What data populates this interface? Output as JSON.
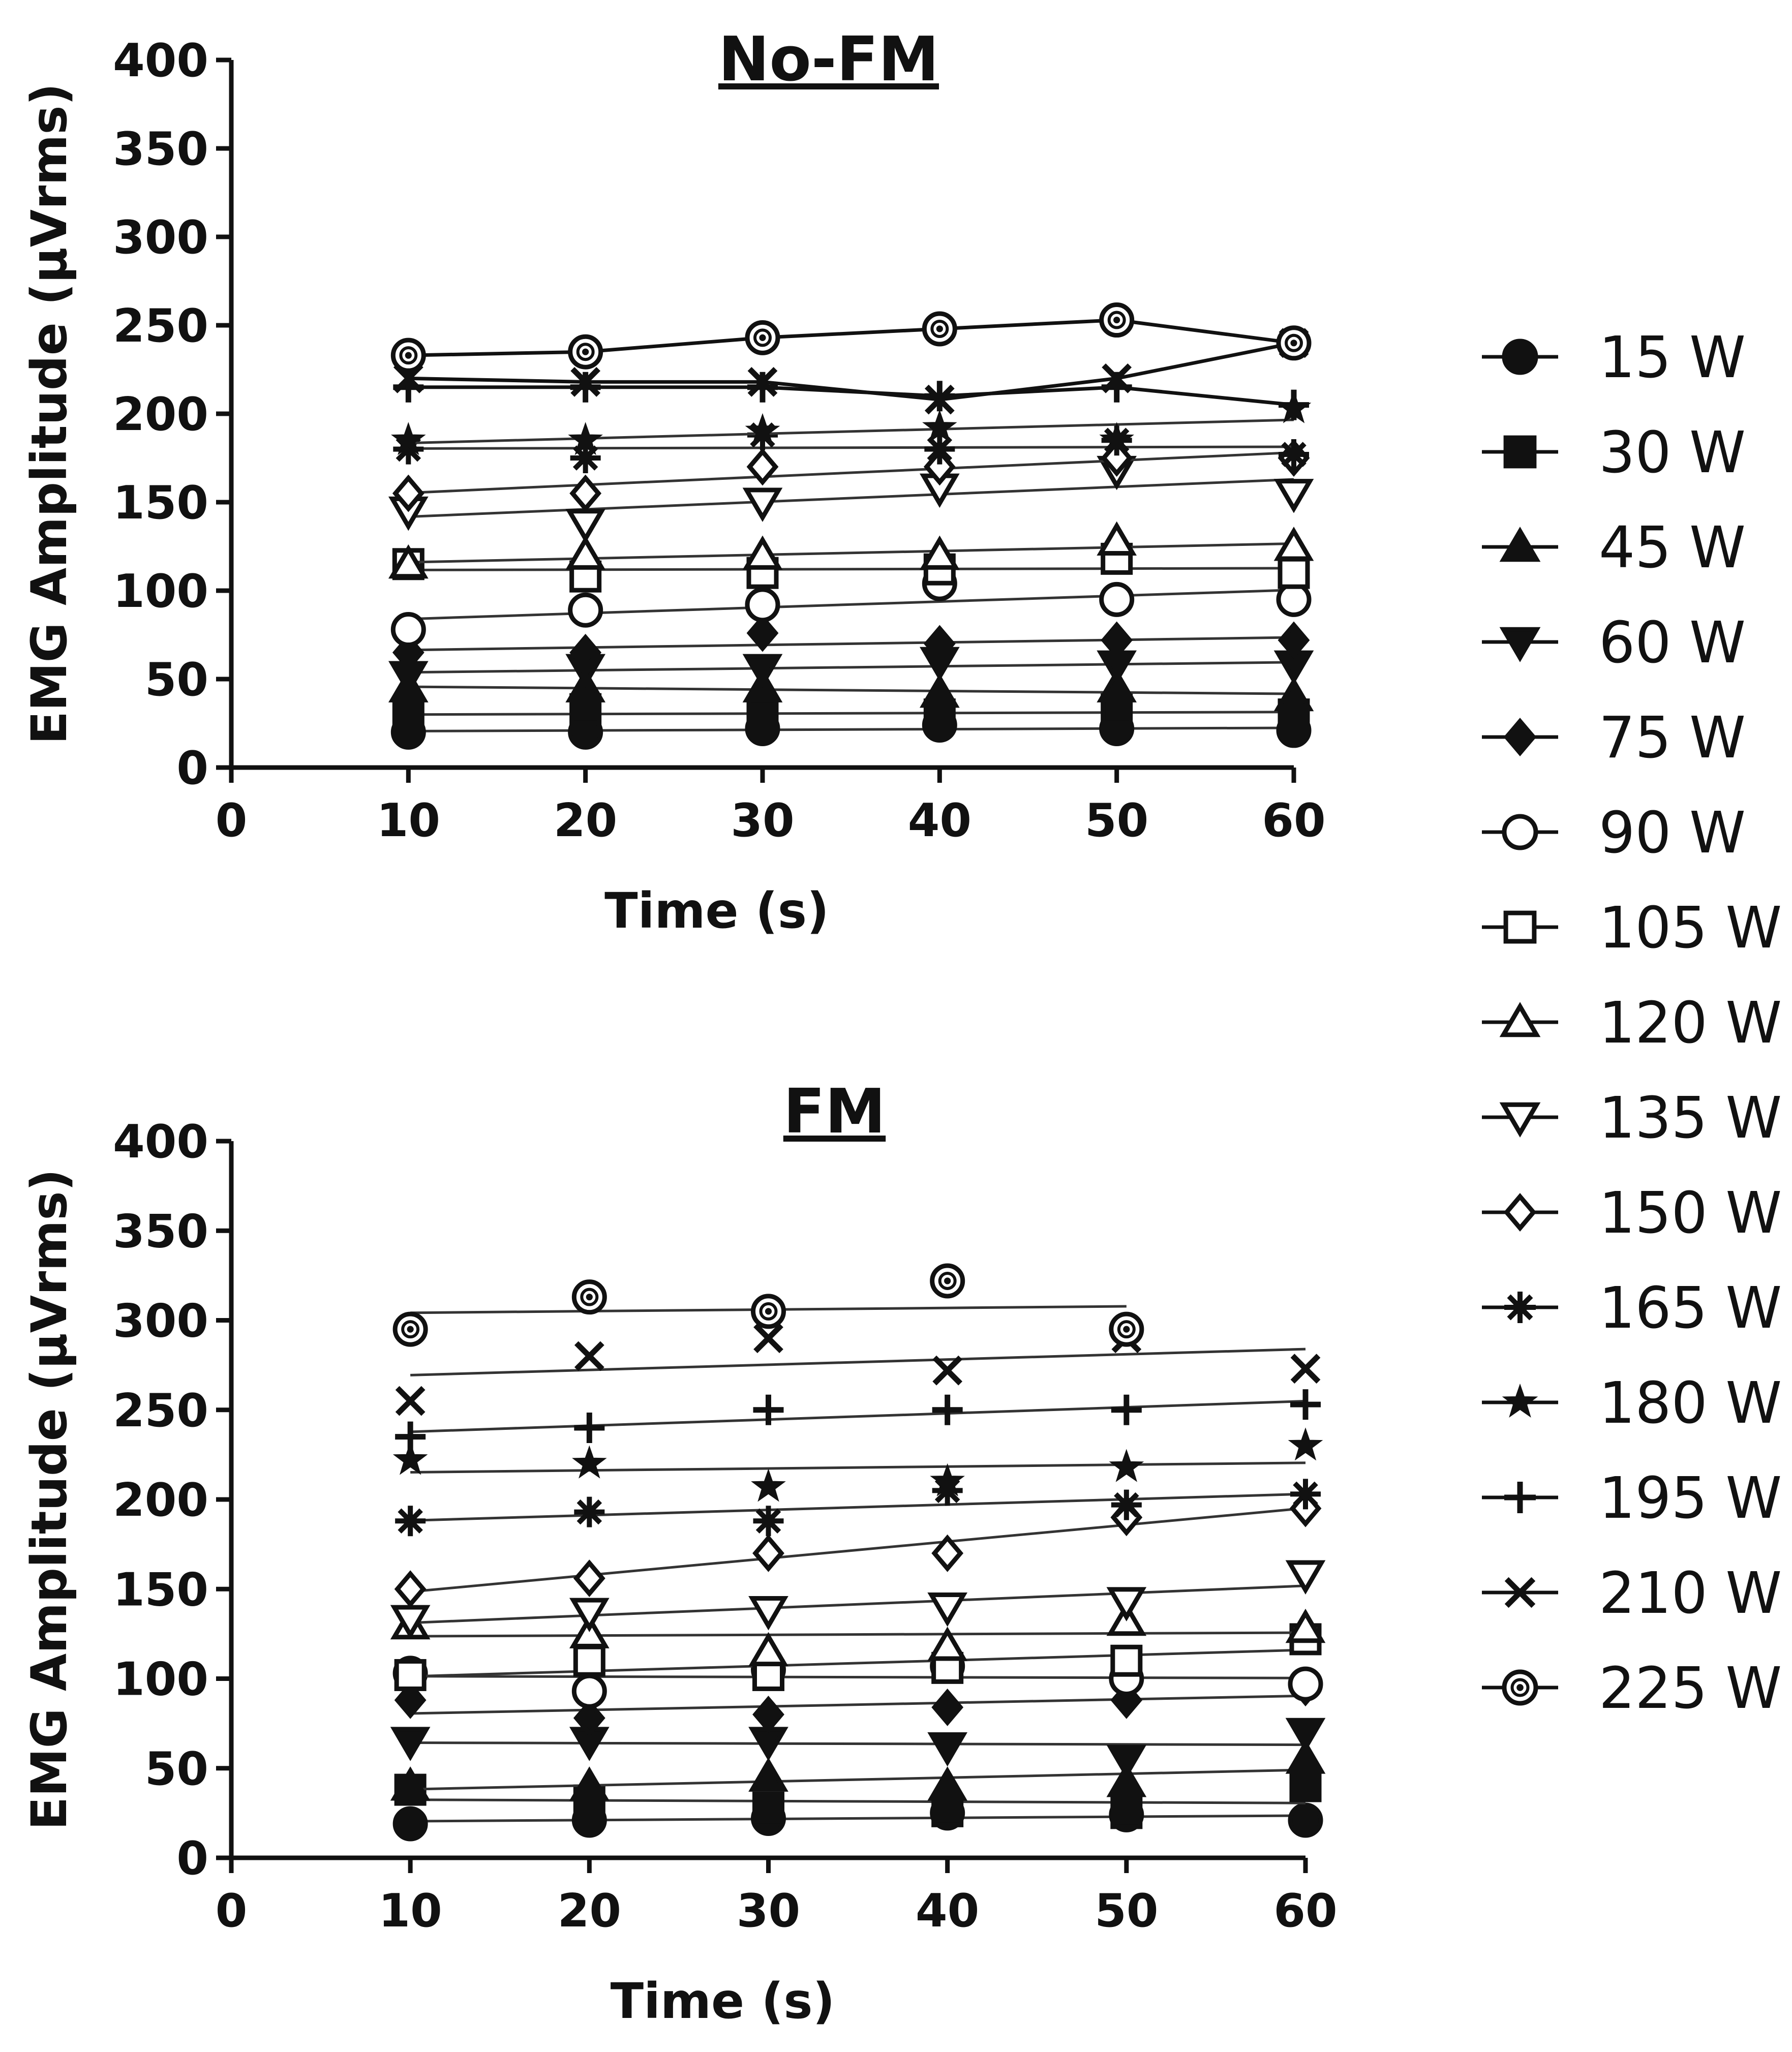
{
  "chart_data": [
    {
      "type": "scatter",
      "title": "No-FM",
      "xlabel": "Time (s)",
      "ylabel": "EMG Amplitude  (μVrms)",
      "xlim": [
        0,
        60
      ],
      "ylim": [
        0,
        400
      ],
      "xticks": [
        0,
        10,
        20,
        30,
        40,
        50,
        60
      ],
      "yticks": [
        0,
        50,
        100,
        150,
        200,
        250,
        300,
        350,
        400
      ],
      "x": [
        10,
        20,
        30,
        40,
        50,
        60
      ],
      "series": [
        {
          "name": "15 W",
          "marker": "circle-filled",
          "values": [
            20,
            20,
            22,
            24,
            22,
            21
          ],
          "connect": false
        },
        {
          "name": "30 W",
          "marker": "square-filled",
          "values": [
            28,
            33,
            30,
            30,
            33,
            30
          ],
          "connect": false
        },
        {
          "name": "45 W",
          "marker": "triangle-up-filled",
          "values": [
            45,
            45,
            45,
            42,
            45,
            40
          ],
          "connect": false
        },
        {
          "name": "60 W",
          "marker": "triangle-down-filled",
          "values": [
            52,
            56,
            56,
            60,
            58,
            58
          ],
          "connect": false
        },
        {
          "name": "75 W",
          "marker": "diamond-filled",
          "values": [
            65,
            65,
            76,
            70,
            72,
            72
          ],
          "connect": false
        },
        {
          "name": "90 W",
          "marker": "circle-open",
          "values": [
            78,
            89,
            92,
            104,
            95,
            95
          ],
          "connect": false
        },
        {
          "name": "105 W",
          "marker": "square-open",
          "values": [
            115,
            108,
            110,
            112,
            118,
            110
          ],
          "connect": false
        },
        {
          "name": "120 W",
          "marker": "triangle-up-open",
          "values": [
            115,
            120,
            120,
            120,
            128,
            125
          ],
          "connect": false
        },
        {
          "name": "135 W",
          "marker": "triangle-down-open",
          "values": [
            145,
            138,
            150,
            158,
            168,
            155
          ],
          "connect": false
        },
        {
          "name": "150 W",
          "marker": "diamond-open",
          "values": [
            155,
            155,
            170,
            170,
            175,
            175
          ],
          "connect": false
        },
        {
          "name": "165 W",
          "marker": "asterisk",
          "values": [
            180,
            175,
            188,
            180,
            185,
            177
          ],
          "connect": false
        },
        {
          "name": "180 W",
          "marker": "star",
          "values": [
            185,
            185,
            190,
            192,
            185,
            203
          ],
          "connect": false
        },
        {
          "name": "195 W",
          "marker": "plus",
          "values": [
            215,
            215,
            215,
            210,
            215,
            205
          ],
          "connect": true
        },
        {
          "name": "210 W",
          "marker": "x",
          "values": [
            220,
            218,
            218,
            208,
            220,
            240
          ],
          "connect": true
        },
        {
          "name": "225 W",
          "marker": "circle-dot",
          "values": [
            233,
            235,
            243,
            248,
            253,
            240
          ],
          "connect": true
        }
      ]
    },
    {
      "type": "scatter",
      "title": "FM",
      "xlabel": "Time (s)",
      "ylabel": "EMG Amplitude  (μVrms)",
      "xlim": [
        0,
        60
      ],
      "ylim": [
        0,
        400
      ],
      "xticks": [
        0,
        10,
        20,
        30,
        40,
        50,
        60
      ],
      "yticks": [
        0,
        50,
        100,
        150,
        200,
        250,
        300,
        350,
        400
      ],
      "x": [
        10,
        20,
        30,
        40,
        50,
        60
      ],
      "series": [
        {
          "name": "15 W",
          "marker": "circle-filled",
          "values": [
            19,
            21,
            22,
            25,
            24,
            21
          ],
          "connect": false
        },
        {
          "name": "30 W",
          "marker": "square-filled",
          "values": [
            38,
            32,
            28,
            26,
            25,
            40
          ],
          "connect": false
        },
        {
          "name": "45 W",
          "marker": "triangle-up-filled",
          "values": [
            40,
            40,
            45,
            40,
            42,
            55
          ],
          "connect": false
        },
        {
          "name": "60 W",
          "marker": "triangle-down-filled",
          "values": [
            65,
            65,
            65,
            62,
            55,
            70
          ],
          "connect": false
        },
        {
          "name": "75 W",
          "marker": "diamond-filled",
          "values": [
            88,
            78,
            80,
            84,
            88,
            95
          ],
          "connect": false
        },
        {
          "name": "90 W",
          "marker": "circle-open",
          "values": [
            103,
            93,
            105,
            107,
            100,
            97
          ],
          "connect": false
        },
        {
          "name": "105 W",
          "marker": "square-open",
          "values": [
            102,
            110,
            102,
            106,
            110,
            122
          ],
          "connect": false
        },
        {
          "name": "120 W",
          "marker": "triangle-up-open",
          "values": [
            130,
            125,
            115,
            118,
            132,
            128
          ],
          "connect": false
        },
        {
          "name": "135 W",
          "marker": "triangle-down-open",
          "values": [
            133,
            137,
            138,
            140,
            143,
            158
          ],
          "connect": false
        },
        {
          "name": "150 W",
          "marker": "diamond-open",
          "values": [
            150,
            156,
            170,
            170,
            190,
            195
          ],
          "connect": false
        },
        {
          "name": "165 W",
          "marker": "asterisk",
          "values": [
            188,
            193,
            188,
            205,
            197,
            203
          ],
          "connect": false
        },
        {
          "name": "180 W",
          "marker": "star",
          "values": [
            222,
            220,
            207,
            210,
            218,
            230
          ],
          "connect": false
        },
        {
          "name": "195 W",
          "marker": "plus",
          "values": [
            235,
            240,
            250,
            250,
            250,
            253
          ],
          "connect": false
        },
        {
          "name": "210 W",
          "marker": "x",
          "values": [
            255,
            280,
            290,
            272,
            290,
            273
          ],
          "connect": false
        },
        {
          "name": "225 W",
          "marker": "circle-dot",
          "values": [
            295,
            313,
            305,
            322,
            295,
            null
          ],
          "connect": false
        }
      ]
    }
  ],
  "legend": {
    "placement": "right",
    "items": [
      {
        "label": "15 W",
        "marker": "circle-filled"
      },
      {
        "label": "30 W",
        "marker": "square-filled"
      },
      {
        "label": "45 W",
        "marker": "triangle-up-filled"
      },
      {
        "label": "60 W",
        "marker": "triangle-down-filled"
      },
      {
        "label": "75 W",
        "marker": "diamond-filled"
      },
      {
        "label": "90 W",
        "marker": "circle-open"
      },
      {
        "label": "105 W",
        "marker": "square-open"
      },
      {
        "label": "120 W",
        "marker": "triangle-up-open"
      },
      {
        "label": "135 W",
        "marker": "triangle-down-open"
      },
      {
        "label": "150 W",
        "marker": "diamond-open"
      },
      {
        "label": "165 W",
        "marker": "asterisk"
      },
      {
        "label": "180 W",
        "marker": "star"
      },
      {
        "label": "195 W",
        "marker": "plus"
      },
      {
        "label": "210 W",
        "marker": "x"
      },
      {
        "label": "225 W",
        "marker": "circle-dot"
      }
    ]
  },
  "colors": {
    "ink": "#111111",
    "background": "#ffffff"
  }
}
